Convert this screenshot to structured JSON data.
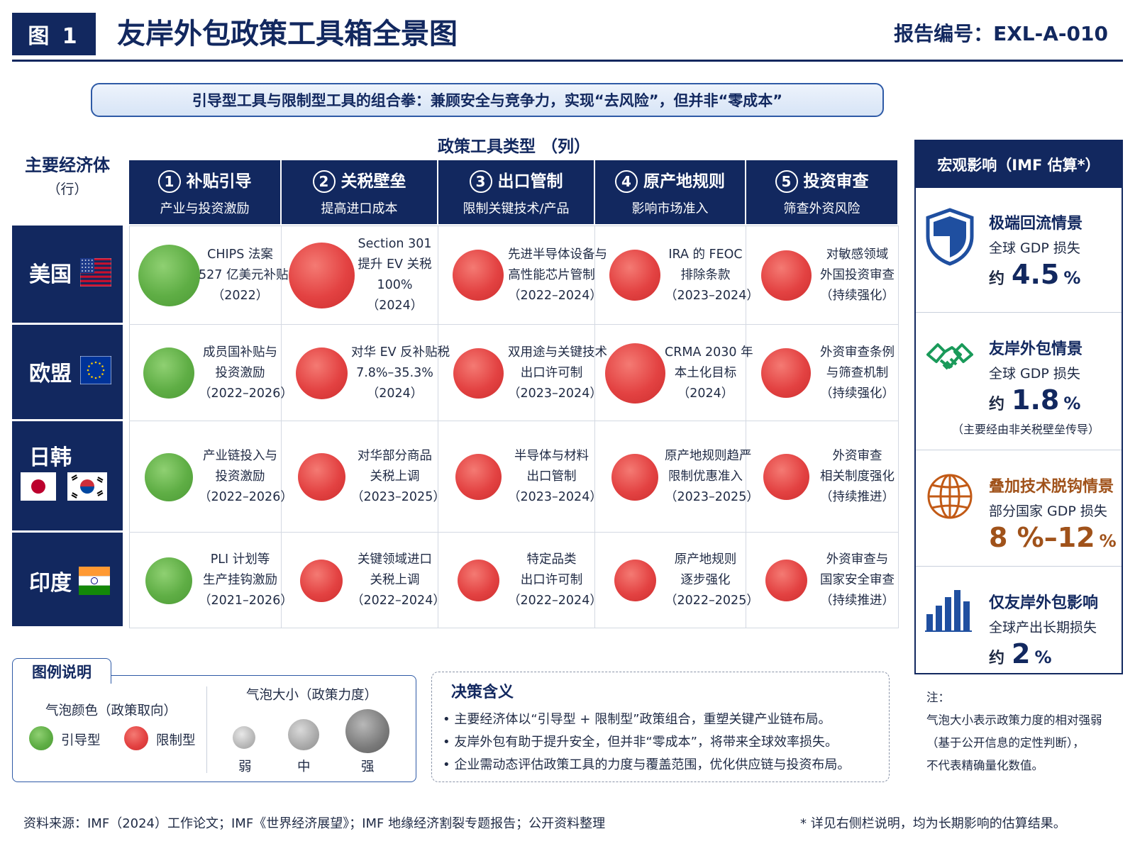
{
  "header": {
    "badge": "图 1",
    "title": "友岸外包政策工具箱全景图",
    "report_no": "报告编号：EXL-A-010"
  },
  "subtitle": "引导型工具与限制型工具的组合拳：兼顾安全与竞争力，实现“去风险”，但并非“零成本”",
  "col_caption": "政策工具类型 （列）",
  "row_caption": {
    "title": "主要经济体",
    "sub": "（行）"
  },
  "columns": [
    {
      "num": "1",
      "title": "补贴引导",
      "desc": "产业与投资激励"
    },
    {
      "num": "2",
      "title": "关税壁垒",
      "desc": "提高进口成本"
    },
    {
      "num": "3",
      "title": "出口管制",
      "desc": "限制关键技术/产品"
    },
    {
      "num": "4",
      "title": "原产地规则",
      "desc": "影响市场准入"
    },
    {
      "num": "5",
      "title": "投资审查",
      "desc": "筛查外资风险"
    }
  ],
  "rows": [
    {
      "name": "美国",
      "flags": [
        "us-flag"
      ]
    },
    {
      "name": "欧盟",
      "flags": [
        "eu-flag"
      ]
    },
    {
      "name": "日韩",
      "flags": [
        "japan-flag",
        "korea-flag"
      ]
    },
    {
      "name": "印度",
      "flags": [
        "india-flag"
      ]
    }
  ],
  "cells": [
    [
      {
        "type": "guide",
        "strength": 0.85,
        "lines": [
          "CHIPS 法案",
          "527 亿美元补贴",
          "（2022）"
        ]
      },
      {
        "type": "restrict",
        "strength": 0.95,
        "lines": [
          "Section 301",
          "提升 EV 关税",
          "100%",
          "（2024）"
        ]
      },
      {
        "type": "restrict",
        "strength": 0.6,
        "lines": [
          "先进半导体设备与",
          "高性能芯片管制",
          "（2022–2024）"
        ]
      },
      {
        "type": "restrict",
        "strength": 0.6,
        "lines": [
          "IRA 的 FEOC",
          "排除条款",
          "（2023–2024）"
        ]
      },
      {
        "type": "restrict",
        "strength": 0.58,
        "lines": [
          "对敏感领域",
          "外国投资审查",
          "（持续强化）"
        ]
      }
    ],
    [
      {
        "type": "guide",
        "strength": 0.6,
        "lines": [
          "成员国补贴与",
          "投资激励",
          "（2022–2026）"
        ]
      },
      {
        "type": "restrict",
        "strength": 0.62,
        "lines": [
          "对华 EV 反补贴税",
          "7.8%–35.3%",
          "（2024）"
        ]
      },
      {
        "type": "restrict",
        "strength": 0.58,
        "lines": [
          "双用途与关键技术",
          "出口许可制",
          "（2023–2024）"
        ]
      },
      {
        "type": "restrict",
        "strength": 0.82,
        "lines": [
          "CRMA 2030 年",
          "本土化目标",
          "（2024）"
        ]
      },
      {
        "type": "restrict",
        "strength": 0.56,
        "lines": [
          "外资审查条例",
          "与筛查机制",
          "（持续强化）"
        ]
      }
    ],
    [
      {
        "type": "guide",
        "strength": 0.53,
        "lines": [
          "产业链投入与",
          "投资激励",
          "（2022–2026）"
        ]
      },
      {
        "type": "restrict",
        "strength": 0.52,
        "lines": [
          "对华部分商品",
          "关税上调",
          "（2023–2025）"
        ]
      },
      {
        "type": "restrict",
        "strength": 0.48,
        "lines": [
          "半导体与材料",
          "出口管制",
          "（2023–2024）"
        ]
      },
      {
        "type": "restrict",
        "strength": 0.5,
        "lines": [
          "原产地规则趋严",
          "限制优惠准入",
          "（2023–2025）"
        ]
      },
      {
        "type": "restrict",
        "strength": 0.48,
        "lines": [
          "外资审查",
          "相关制度强化",
          "（持续推进）"
        ]
      }
    ],
    [
      {
        "type": "guide",
        "strength": 0.5,
        "lines": [
          "PLI 计划等",
          "生产挂钩激励",
          "（2021–2026）"
        ]
      },
      {
        "type": "restrict",
        "strength": 0.4,
        "lines": [
          "关键领域进口",
          "关税上调",
          "（2022–2024）"
        ]
      },
      {
        "type": "restrict",
        "strength": 0.38,
        "lines": [
          "特定品类",
          "出口许可制",
          "（2022–2024）"
        ]
      },
      {
        "type": "restrict",
        "strength": 0.38,
        "lines": [
          "原产地规则",
          "逐步强化",
          "（2022–2025）"
        ]
      },
      {
        "type": "restrict",
        "strength": 0.38,
        "lines": [
          "外资审查与",
          "国家安全审查",
          "（持续推进）"
        ]
      }
    ]
  ],
  "macro": {
    "title": "宏观影响（IMF 估算*）",
    "items": [
      {
        "icon": "shield-icon",
        "title": "极端回流情景",
        "sub": "全球 GDP 损失",
        "prefix": "约",
        "value": "4.5",
        "unit": "%",
        "note": "",
        "color": "#12285f"
      },
      {
        "icon": "handshake-icon",
        "title": "友岸外包情景",
        "sub": "全球 GDP 损失",
        "prefix": "约",
        "value": "1.8",
        "unit": "%",
        "note": "（主要经由非关税壁垒传导）",
        "color": "#12285f"
      },
      {
        "icon": "globe-icon",
        "title": "叠加技术脱钩情景",
        "sub": "部分国家 GDP 损失",
        "prefix": "",
        "value": "8 %–12",
        "unit": "%",
        "note": "",
        "color": "#a0521a"
      },
      {
        "icon": "bar-chart-icon",
        "title": "仅友岸外包影响",
        "sub": "全球产出长期损失",
        "prefix": "约",
        "value": "2",
        "unit": "%",
        "note": "",
        "color": "#12285f"
      }
    ]
  },
  "legend": {
    "title": "图例说明",
    "color_title": "气泡颜色（政策取向）",
    "guide_label": "引导型",
    "restrict_label": "限制型",
    "size_title": "气泡大小（政策力度）",
    "sizes": [
      "弱",
      "中",
      "强"
    ]
  },
  "decision": {
    "title": "决策含义",
    "items": [
      "• 主要经济体以“引导型 + 限制型”政策组合，重塑关键产业链布局。",
      "• 友岸外包有助于提升安全，但并非“零成本”，将带来全球效率损失。",
      "• 企业需动态评估政策工具的力度与覆盖范围，优化供应链与投资布局。"
    ]
  },
  "note": {
    "label": "注：",
    "lines": [
      "气泡大小表示政策力度的相对强弱",
      "（基于公开信息的定性判断），",
      "不代表精确量化数值。"
    ]
  },
  "footer": {
    "source": "资料来源：IMF（2024）工作论文；IMF《世界经济展望》；IMF 地缘经济割裂专题报告；公开资料整理",
    "note": "* 详见右侧栏说明，均为长期影响的估算结果。"
  },
  "colors": {
    "navy": "#12285f",
    "guide": "#5fae45",
    "restrict": "#e34242",
    "orange": "#a0521a"
  }
}
